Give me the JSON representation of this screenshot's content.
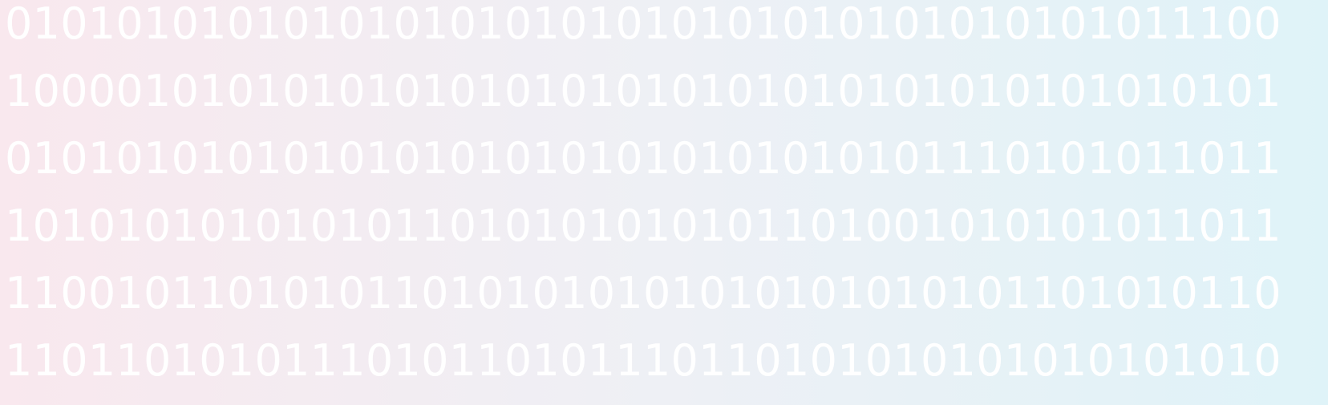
{
  "colors": {
    "background_left": "#f9e8ee",
    "background_mid": "#eef0f5",
    "background_right": "#dff3f8",
    "digits": "#ffffff"
  },
  "binary_rows": [
    "0101010101010101010101010101010101010101011100",
    "1000010101010101010101010101010101010101010101",
    "0101010101010101010101010101010101110101011011",
    "1010101010101011010101010101101001010101011011",
    "1100101101010110101010101010101010101101010110",
    "1101101010111010110101110110101010101010101010"
  ]
}
